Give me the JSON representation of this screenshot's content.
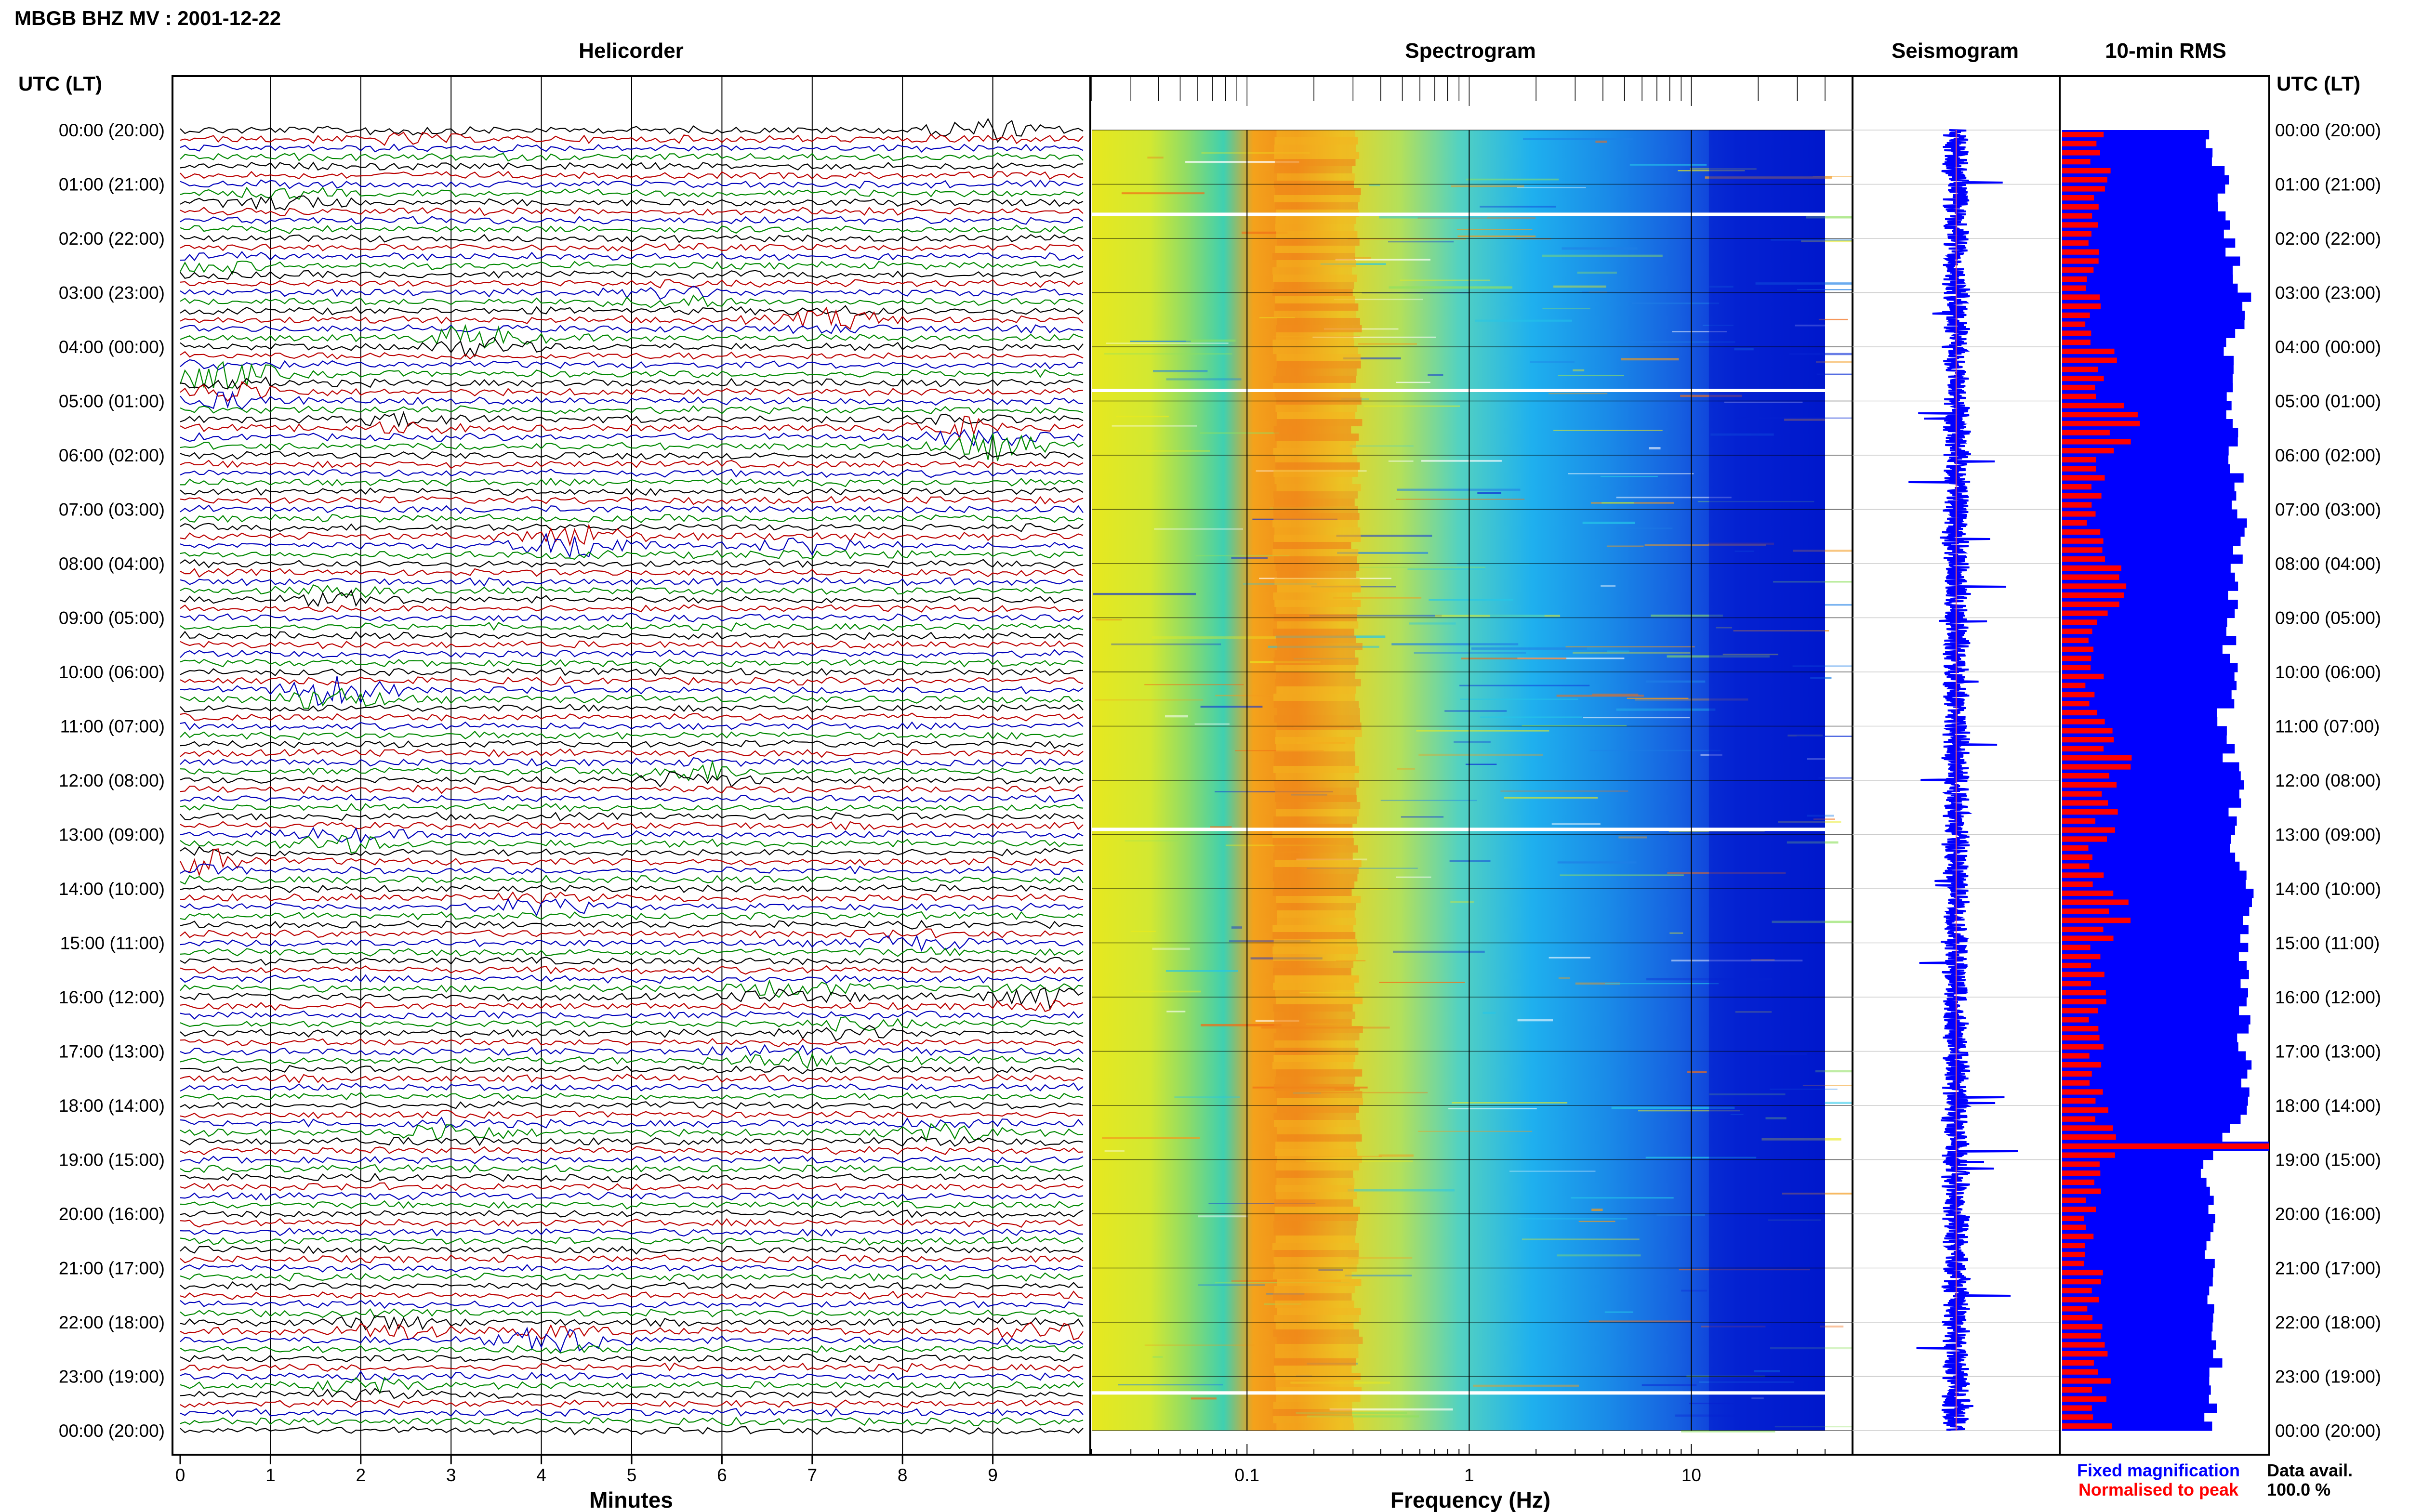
{
  "header": {
    "station_title": "MBGB BHZ MV : 2001-12-22"
  },
  "time_axis": {
    "label": "UTC (LT)",
    "hours": [
      "00:00 (20:00)",
      "01:00 (21:00)",
      "02:00 (22:00)",
      "03:00 (23:00)",
      "04:00 (00:00)",
      "05:00 (01:00)",
      "06:00 (02:00)",
      "07:00 (03:00)",
      "08:00 (04:00)",
      "09:00 (05:00)",
      "10:00 (06:00)",
      "11:00 (07:00)",
      "12:00 (08:00)",
      "13:00 (09:00)",
      "14:00 (10:00)",
      "15:00 (11:00)",
      "16:00 (12:00)",
      "17:00 (13:00)",
      "18:00 (14:00)",
      "19:00 (15:00)",
      "20:00 (16:00)",
      "21:00 (17:00)",
      "22:00 (18:00)",
      "23:00 (19:00)",
      "00:00 (20:00)"
    ]
  },
  "panels": {
    "helicorder": {
      "title": "Helicorder",
      "xlabel": "Minutes",
      "ticks": [
        "0",
        "1",
        "2",
        "3",
        "4",
        "5",
        "6",
        "7",
        "8",
        "9"
      ]
    },
    "spectrogram": {
      "title": "Spectrogram",
      "xlabel": "Frequency (Hz)",
      "ticks": [
        "0.1",
        "1",
        "10"
      ]
    },
    "seismogram": {
      "title": "Seismogram"
    },
    "rms": {
      "title": "10-min RMS"
    }
  },
  "legend": {
    "fixed": "Fixed magnification",
    "normalised": "Normalised to peak",
    "fixed_color": "#0000ff",
    "normalised_color": "#ff0000"
  },
  "data_availability": {
    "label": "Data avail.",
    "value": "100.0 %"
  },
  "chart_data": [
    {
      "type": "line",
      "panel": "Helicorder",
      "xlabel": "Minutes",
      "xlim": [
        0,
        10
      ],
      "time_range_utc": [
        "00:00",
        "24:00"
      ],
      "trace_colors": [
        "#000000",
        "#bb0000",
        "#0000bb",
        "#008800"
      ],
      "events": [
        {
          "t_hour": 0.0,
          "minute": 8.9,
          "amp": 0.9
        },
        {
          "t_hour": 0.1,
          "minute": 2.5,
          "amp": 0.5
        },
        {
          "t_hour": 1.3,
          "minute": 1.2,
          "amp": 0.6
        },
        {
          "t_hour": 2.5,
          "minute": 0.3,
          "amp": 0.5
        },
        {
          "t_hour": 3.1,
          "minute": 5.5,
          "amp": 0.6
        },
        {
          "t_hour": 3.5,
          "minute": 7.3,
          "amp": 0.8
        },
        {
          "t_hour": 3.9,
          "minute": 3.3,
          "amp": 1.2
        },
        {
          "t_hour": 4.5,
          "minute": 0.4,
          "amp": 1.4
        },
        {
          "t_hour": 4.9,
          "minute": 0.6,
          "amp": 1.0
        },
        {
          "t_hour": 5.4,
          "minute": 2.5,
          "amp": 0.6
        },
        {
          "t_hour": 5.5,
          "minute": 8.6,
          "amp": 0.8
        },
        {
          "t_hour": 5.8,
          "minute": 9.0,
          "amp": 1.1
        },
        {
          "t_hour": 7.6,
          "minute": 4.4,
          "amp": 1.5
        },
        {
          "t_hour": 7.7,
          "minute": 7.0,
          "amp": 0.8
        },
        {
          "t_hour": 8.6,
          "minute": 1.8,
          "amp": 0.6
        },
        {
          "t_hour": 10.4,
          "minute": 1.7,
          "amp": 1.6
        },
        {
          "t_hour": 11.9,
          "minute": 5.7,
          "amp": 1.0
        },
        {
          "t_hour": 13.1,
          "minute": 1.8,
          "amp": 0.8
        },
        {
          "t_hour": 13.5,
          "minute": 0.1,
          "amp": 1.4
        },
        {
          "t_hour": 14.3,
          "minute": 4.0,
          "amp": 0.6
        },
        {
          "t_hour": 15.0,
          "minute": 8.1,
          "amp": 0.5
        },
        {
          "t_hour": 15.9,
          "minute": 6.8,
          "amp": 0.9
        },
        {
          "t_hour": 16.0,
          "minute": 9.5,
          "amp": 0.9
        },
        {
          "t_hour": 16.6,
          "minute": 7.5,
          "amp": 0.6
        },
        {
          "t_hour": 17.1,
          "minute": 6.7,
          "amp": 0.7
        },
        {
          "t_hour": 18.5,
          "minute": 3.0,
          "amp": 0.8
        },
        {
          "t_hour": 18.5,
          "minute": 8.5,
          "amp": 0.7
        },
        {
          "t_hour": 22.1,
          "minute": 2.3,
          "amp": 0.9
        },
        {
          "t_hour": 22.3,
          "minute": 4.2,
          "amp": 1.2
        },
        {
          "t_hour": 22.2,
          "minute": 9.6,
          "amp": 0.7
        },
        {
          "t_hour": 23.2,
          "minute": 2.1,
          "amp": 0.6
        }
      ]
    },
    {
      "type": "heatmap",
      "panel": "Spectrogram",
      "xlabel": "Frequency (Hz)",
      "x_scale": "log",
      "xlim": [
        0.02,
        40
      ],
      "x_ticks": [
        0.1,
        1,
        10
      ],
      "time_range_utc": [
        "00:00",
        "24:00"
      ],
      "colormap": "jet",
      "gap_rows_hours": [
        1.55,
        4.8,
        12.9,
        23.3
      ]
    },
    {
      "type": "line",
      "panel": "Seismogram",
      "time_range_utc": [
        "00:00",
        "24:00"
      ],
      "color": "#0000ff"
    },
    {
      "type": "bar",
      "panel": "10-min RMS",
      "orientation": "horizontal",
      "bin_minutes": 10,
      "series": [
        {
          "name": "Fixed magnification",
          "color": "#0000ff",
          "hourly_level": [
            0.72,
            0.78,
            0.8,
            0.88,
            0.82,
            0.78,
            0.84,
            0.86,
            0.83,
            0.8,
            0.82,
            0.77,
            0.84,
            0.82,
            0.9,
            0.86,
            0.87,
            0.88,
            0.9,
            0.7,
            0.7,
            0.72,
            0.74,
            0.75,
            0.7
          ]
        },
        {
          "name": "Normalised to peak",
          "color": "#ff0000",
          "hourly_level": [
            0.18,
            0.17,
            0.15,
            0.15,
            0.22,
            0.3,
            0.18,
            0.16,
            0.24,
            0.16,
            0.16,
            0.28,
            0.22,
            0.18,
            0.26,
            0.18,
            0.18,
            0.16,
            0.2,
            0.16,
            0.14,
            0.16,
            0.18,
            0.2,
            0.16
          ]
        }
      ],
      "peak_hour": 18.6
    }
  ]
}
